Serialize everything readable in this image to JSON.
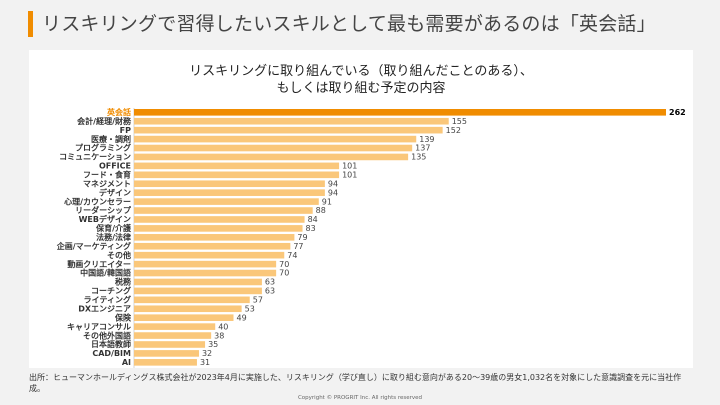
{
  "slide": {
    "title": "リスキリングで習得したいスキルとして最も需要があるのは「英会話」",
    "accent_color": "#f08c00"
  },
  "chart_data": {
    "type": "bar",
    "orientation": "horizontal",
    "title_lines": [
      "リスキリングに取り組んでいる（取り組んだことのある）、",
      "もしくは取り組む予定の内容"
    ],
    "categories": [
      "英会話",
      "会計/経理/財務",
      "FP",
      "医療・調剤",
      "プログラミング",
      "コミュニケーション",
      "OFFICE",
      "フード・食育",
      "マネジメント",
      "デザイン",
      "心理/カウンセラー",
      "リーダーシップ",
      "WEBデザイン",
      "保育/介護",
      "法務/法律",
      "企画/マーケティング",
      "その他",
      "動画クリエイター",
      "中国語/韓国語",
      "税務",
      "コーチング",
      "ライティング",
      "DXエンジニア",
      "保険",
      "キャリアコンサル",
      "その他外国語",
      "日本語教師",
      "CAD/BIM",
      "AI"
    ],
    "values": [
      262,
      155,
      152,
      139,
      137,
      135,
      101,
      101,
      94,
      94,
      91,
      88,
      84,
      83,
      79,
      77,
      74,
      70,
      70,
      63,
      63,
      57,
      53,
      49,
      40,
      38,
      35,
      32,
      31
    ],
    "highlight_index": 0,
    "highlight_color": "#f08c00",
    "bar_color": "#fac77a",
    "xlim": [
      0,
      262
    ],
    "grid": false,
    "legend": "none"
  },
  "source_note": "出所：ヒューマンホールディングス株式会社が2023年4月に実施した、リスキリング（学び直し）に取り組む意向がある20〜39歳の男女1,032名を対象にした意識調査を元に当社作成。",
  "copyright": "Copyright © PROGRIT Inc. All rights reserved"
}
